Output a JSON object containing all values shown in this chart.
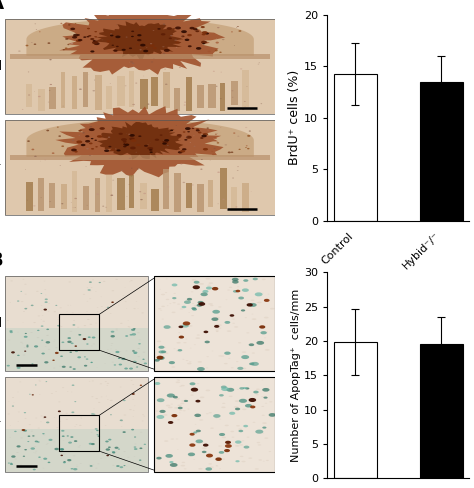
{
  "panel_A_label": "A",
  "panel_B_label": "B",
  "bar_chart_A": {
    "categories": [
      "Control",
      "Hybid⁻/⁻"
    ],
    "values": [
      14.2,
      13.5
    ],
    "errors": [
      3.0,
      2.5
    ],
    "bar_colors": [
      "white",
      "black"
    ],
    "ylabel": "BrdU⁺ cells (%)",
    "ylim": [
      0,
      20
    ],
    "yticks": [
      0,
      5,
      10,
      15,
      20
    ],
    "bar_width": 0.5,
    "edge_color": "black"
  },
  "bar_chart_B": {
    "categories": [
      "Control",
      "Hybid⁻/⁻"
    ],
    "values": [
      19.8,
      19.5
    ],
    "errors": [
      4.8,
      4.0
    ],
    "bar_colors": [
      "white",
      "black"
    ],
    "ylabel": "Number of ApopTag⁺  cells/mm",
    "ylim": [
      0,
      30
    ],
    "yticks": [
      0,
      5,
      10,
      15,
      20,
      25,
      30
    ],
    "bar_width": 0.5,
    "edge_color": "black"
  },
  "label_fontsize": 9,
  "tick_fontsize": 8,
  "panel_label_fontsize": 14,
  "control_label": "Control",
  "hybid_label": "Hybid⁻/⁻",
  "background_color": "white",
  "img_bg_color": "#e8d5c0",
  "img_dark_color": "#c4956a",
  "img_stain_color": "#7b3010",
  "img_very_dark": "#4a1a05"
}
